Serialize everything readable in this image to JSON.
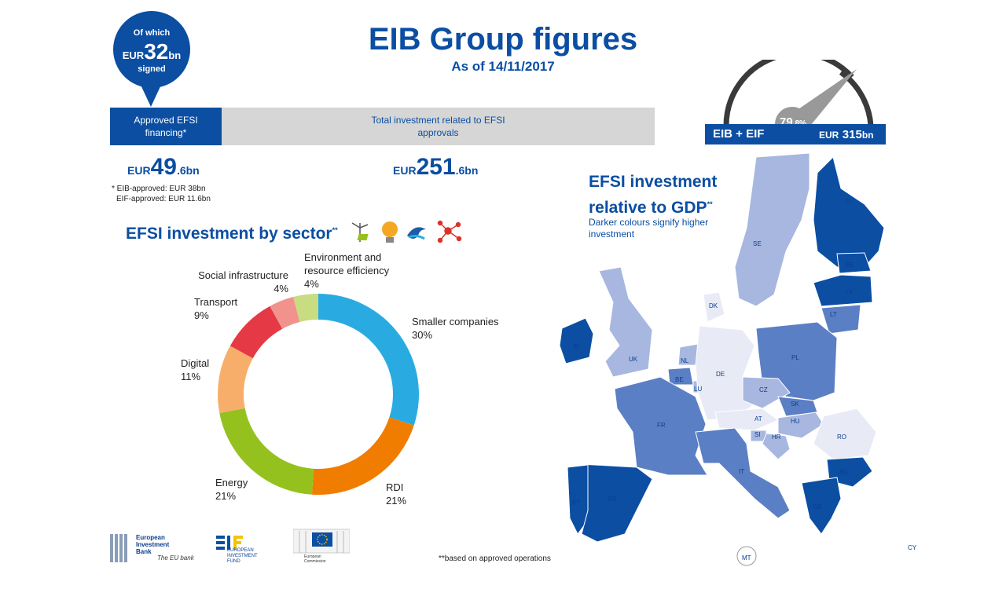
{
  "header": {
    "title": "EIB Group figures",
    "as_of": "As of 14/11/2017"
  },
  "bubble": {
    "line1": "Of which",
    "currency": "EUR",
    "number": "32",
    "suffix": "bn",
    "line3": "signed"
  },
  "bars": {
    "approved_label": "Approved EFSI financing*",
    "total_label": "Total investment related to EFSI approvals"
  },
  "values": {
    "approved": {
      "currency": "EUR",
      "number": "49",
      "suffix": ".6bn"
    },
    "total": {
      "currency": "EUR",
      "number": "251",
      "suffix": ".6bn"
    }
  },
  "note": {
    "line1": "* EIB-approved: EUR 38bn",
    "line2": "EIF-approved: EUR 11.6bn"
  },
  "sector": {
    "title": "EFSI investment by sector",
    "title_marks": "**",
    "icons": [
      "wind-turbine-icon",
      "lightbulb-icon",
      "water-icon",
      "network-icon"
    ]
  },
  "chart_data": {
    "type": "pie",
    "donut": true,
    "slices": [
      {
        "label": "Smaller companies",
        "pct_text": "30%",
        "value": 30,
        "color": "#29abe2"
      },
      {
        "label": "RDI",
        "pct_text": "21%",
        "value": 21,
        "color": "#f07d00"
      },
      {
        "label": "Energy",
        "pct_text": "21%",
        "value": 21,
        "color": "#95c11f"
      },
      {
        "label": "Digital",
        "pct_text": "11%",
        "value": 11,
        "color": "#f8ae6b"
      },
      {
        "label": "Transport",
        "pct_text": "9%",
        "value": 9,
        "color": "#e63946"
      },
      {
        "label": "Social infrastructure",
        "pct_text": "4%",
        "value": 4,
        "color": "#f1928d"
      },
      {
        "label": "Environment and resource efficiency",
        "label_l1": "Environment and",
        "label_l2": "resource efficiency",
        "pct_text": "4%",
        "value": 4,
        "color": "#c8dc82"
      }
    ]
  },
  "gauge": {
    "percent_number": "79",
    "percent_suffix": ".8%",
    "left_label": "EIB + EIF",
    "right_currency": "EUR",
    "right_number": "315",
    "right_suffix": "bn",
    "value": 79.8
  },
  "map": {
    "title_l1": "EFSI investment",
    "title_l2": "relative to GDP",
    "title_marks": "**",
    "subtitle_l1": "Darker colours signify higher",
    "subtitle_l2": "investment",
    "colors": {
      "dark": "#0b4ea2",
      "mid": "#5b7fc4",
      "light": "#a7b7e0",
      "pale": "#e8ebf6"
    },
    "countries": [
      "FI",
      "SE",
      "EE",
      "LV",
      "LT",
      "DK",
      "IE",
      "UK",
      "NL",
      "BE",
      "LU",
      "DE",
      "PL",
      "CZ",
      "SK",
      "AT",
      "HU",
      "SI",
      "HR",
      "RO",
      "FR",
      "IT",
      "BG",
      "PT",
      "ES",
      "GR",
      "MT",
      "CY"
    ]
  },
  "logos": {
    "eib": {
      "l1": "European",
      "l2": "Investment",
      "l3": "Bank",
      "tag": "The EU bank"
    },
    "eif": {
      "l1": "EUROPEAN",
      "l2": "INVESTMENT",
      "l3": "FUND"
    },
    "ec": {
      "l1": "European",
      "l2": "Commission"
    }
  },
  "footnote": "**based on approved operations"
}
